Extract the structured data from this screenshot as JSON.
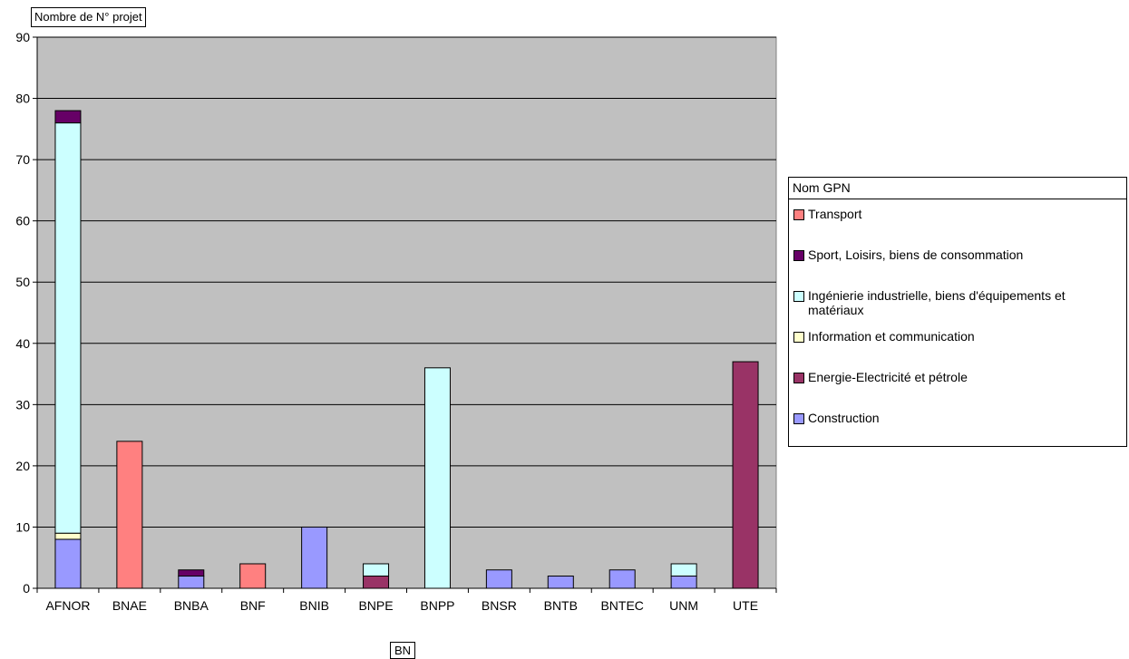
{
  "chart_data": {
    "type": "bar",
    "stacked": true,
    "categories": [
      "AFNOR",
      "BNAE",
      "BNBA",
      "BNF",
      "BNIB",
      "BNPE",
      "BNPP",
      "BNSR",
      "BNTB",
      "BNTEC",
      "UNM",
      "UTE"
    ],
    "ylim": [
      0,
      90
    ],
    "yticks": [
      0,
      10,
      20,
      30,
      40,
      50,
      60,
      70,
      80,
      90
    ],
    "grid": true,
    "legend_position": "right",
    "ylabel": "Nombre de  N° projet",
    "xlabel": "BN",
    "legend_title": "Nom GPN",
    "plot_background": "#c0c0c0",
    "series": [
      {
        "name": "Construction",
        "color": "#9999ff",
        "values": [
          8,
          0,
          2,
          0,
          10,
          0,
          0,
          3,
          2,
          3,
          2,
          0
        ]
      },
      {
        "name": "Energie-Electricité et pétrole",
        "color": "#993366",
        "values": [
          0,
          0,
          0,
          0,
          0,
          2,
          0,
          0,
          0,
          0,
          0,
          37
        ]
      },
      {
        "name": "Information et communication",
        "color": "#ffffcc",
        "values": [
          1,
          0,
          0,
          0,
          0,
          0,
          0,
          0,
          0,
          0,
          0,
          0
        ]
      },
      {
        "name": "Ingénierie industrielle, biens d'équipements et matériaux",
        "color": "#ccffff",
        "values": [
          67,
          0,
          0,
          0,
          0,
          2,
          36,
          0,
          0,
          0,
          2,
          0
        ]
      },
      {
        "name": "Sport, Loisirs, biens de consommation",
        "color": "#660066",
        "values": [
          2,
          0,
          1,
          0,
          0,
          0,
          0,
          0,
          0,
          0,
          0,
          0
        ]
      },
      {
        "name": "Transport",
        "color": "#ff8080",
        "values": [
          0,
          24,
          0,
          4,
          0,
          0,
          0,
          0,
          0,
          0,
          0,
          0
        ]
      }
    ],
    "legend_order": [
      "Transport",
      "Sport, Loisirs, biens de consommation",
      "Ingénierie industrielle, biens d'équipements et matériaux",
      "Information et communication",
      "Energie-Electricité et pétrole",
      "Construction"
    ]
  }
}
